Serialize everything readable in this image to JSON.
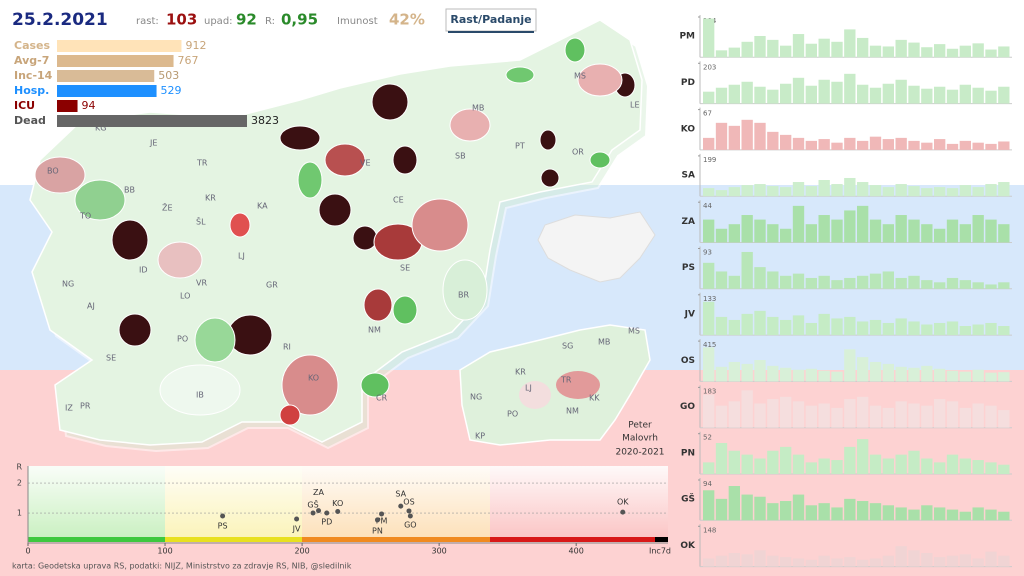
{
  "header": {
    "date": "25.2.2021",
    "rast_label": "rast:",
    "rast": "103",
    "upad_label": "upad:",
    "upad": "92",
    "r_label": "R:",
    "r": "0,95",
    "imunost_label": "Imunost",
    "imunost": "42%",
    "button": "Rast/Padanje"
  },
  "map": {
    "labels": [
      "KG",
      "JE",
      "BO",
      "BB",
      "TR",
      "KR",
      "ŽE",
      "TO",
      "ŠL",
      "KA",
      "ID",
      "LJ",
      "NG",
      "VR",
      "LO",
      "GR",
      "AJ",
      "PO",
      "RI",
      "NM",
      "SE",
      "KO",
      "IB",
      "IZ",
      "PR",
      "CR",
      "BR",
      "SE",
      "CE",
      "VE",
      "SB",
      "MS",
      "LE",
      "MB",
      "PT",
      "OR"
    ],
    "inset_labels": [
      "MS",
      "SG",
      "MB",
      "KR",
      "LJ",
      "TR",
      "NG",
      "KK",
      "PO",
      "NM",
      "KP"
    ],
    "author": [
      "Peter",
      "Malovrh",
      "2020-2021"
    ],
    "credits": "karta: Geodetska uprava RS,  podatki: NIJZ, Ministrstvo za zdravje RS, NIB, @sledilnik"
  },
  "chart_data": [
    {
      "type": "bar",
      "orientation": "horizontal",
      "log_scale": true,
      "xlim": [
        60,
        3823
      ],
      "categories": [
        "Cases",
        "Avg-7",
        "Inc-14",
        "Hosp.",
        "ICU",
        "Dead"
      ],
      "values": [
        912,
        767,
        503,
        529,
        94,
        3823
      ],
      "colors": [
        "#ffe3b8",
        "#dcb98e",
        "#d9bb97",
        "#1e90ff",
        "#8b0000",
        "#666666"
      ],
      "label_colors": [
        "#d4b48a",
        "#c8a57a",
        "#c8a57a",
        "#1e90ff",
        "#8b0000",
        "#555555"
      ],
      "value_colors": [
        "#c8a57a",
        "#c8a57a",
        "#b89a72",
        "#1e90ff",
        "#8b0000",
        "#222222"
      ]
    },
    {
      "type": "scatter",
      "x": [
        142,
        196,
        208,
        212,
        218,
        226,
        272,
        278,
        258,
        255,
        279,
        434
      ],
      "values": [
        0.9,
        0.8,
        1.0,
        1.08,
        1.0,
        1.05,
        1.23,
        1.07,
        0.97,
        0.77,
        0.9,
        1.03
      ],
      "labels": [
        "PS",
        "JV",
        "GŠ",
        "ZA",
        "PD",
        "KO",
        "SA",
        "OS",
        "PM",
        "PN",
        "GO",
        "OK"
      ],
      "xlim": [
        0,
        467
      ],
      "ylim": [
        0,
        2.57
      ],
      "xticks": [
        0,
        100,
        200,
        300,
        400
      ],
      "yticks": [
        1,
        2
      ],
      "xlabel": "Inc7d",
      "ylabel": "R",
      "color": "#555555",
      "grid": true
    },
    {
      "type": "bar",
      "title": "PM",
      "ylim": [
        0,
        104
      ],
      "yticks": [
        104
      ],
      "color": "#c8ebc8",
      "values": [
        100,
        18,
        25,
        40,
        55,
        45,
        30,
        60,
        35,
        48,
        40,
        72,
        50,
        30,
        28,
        45,
        38,
        26,
        34,
        22,
        30,
        36,
        20,
        28
      ]
    },
    {
      "type": "bar",
      "title": "PD",
      "ylim": [
        0,
        203
      ],
      "yticks": [
        203
      ],
      "color": "#c8ebc8",
      "values": [
        60,
        80,
        95,
        110,
        85,
        70,
        100,
        130,
        90,
        120,
        110,
        150,
        95,
        80,
        100,
        120,
        90,
        75,
        85,
        70,
        95,
        80,
        65,
        85
      ]
    },
    {
      "type": "bar",
      "title": "KO",
      "ylim": [
        0,
        67
      ],
      "yticks": [
        67
      ],
      "color": "#f0b8b8",
      "values": [
        20,
        45,
        40,
        50,
        45,
        30,
        25,
        20,
        15,
        18,
        12,
        20,
        15,
        22,
        18,
        20,
        15,
        12,
        18,
        10,
        15,
        12,
        10,
        14
      ]
    },
    {
      "type": "bar",
      "title": "SA",
      "ylim": [
        0,
        199
      ],
      "yticks": [
        199
      ],
      "color": "#cdeecd",
      "values": [
        40,
        30,
        45,
        55,
        60,
        50,
        45,
        70,
        50,
        80,
        60,
        90,
        70,
        55,
        45,
        60,
        50,
        40,
        45,
        40,
        55,
        45,
        60,
        70
      ]
    },
    {
      "type": "bar",
      "title": "ZA",
      "ylim": [
        0,
        44
      ],
      "yticks": [
        44
      ],
      "color": "#a9e0a9",
      "values": [
        25,
        15,
        20,
        30,
        25,
        20,
        15,
        40,
        20,
        30,
        25,
        35,
        40,
        25,
        20,
        30,
        25,
        20,
        15,
        25,
        20,
        30,
        25,
        20
      ]
    },
    {
      "type": "bar",
      "title": "PS",
      "ylim": [
        0,
        93
      ],
      "yticks": [
        93
      ],
      "color": "#b8e6b8",
      "values": [
        60,
        40,
        30,
        85,
        50,
        40,
        30,
        35,
        25,
        30,
        20,
        25,
        30,
        35,
        40,
        25,
        30,
        20,
        15,
        25,
        20,
        15,
        10,
        15
      ]
    },
    {
      "type": "bar",
      "title": "JV",
      "ylim": [
        0,
        133
      ],
      "yticks": [
        133
      ],
      "color": "#c5ecc5",
      "values": [
        110,
        60,
        50,
        70,
        80,
        60,
        50,
        65,
        40,
        70,
        55,
        60,
        45,
        50,
        40,
        55,
        45,
        35,
        40,
        45,
        30,
        35,
        40,
        30
      ]
    },
    {
      "type": "bar",
      "title": "OS",
      "ylim": [
        0,
        415
      ],
      "yticks": [
        415
      ],
      "color": "#d8f0d8",
      "values": [
        350,
        150,
        200,
        180,
        220,
        160,
        140,
        120,
        130,
        110,
        100,
        330,
        250,
        200,
        180,
        150,
        140,
        160,
        130,
        110,
        100,
        120,
        90,
        95
      ]
    },
    {
      "type": "bar",
      "title": "GO",
      "ylim": [
        0,
        183
      ],
      "yticks": [
        183
      ],
      "color": "#f5dede",
      "values": [
        150,
        100,
        120,
        170,
        110,
        130,
        140,
        120,
        100,
        110,
        90,
        130,
        140,
        100,
        90,
        120,
        110,
        100,
        130,
        120,
        90,
        110,
        100,
        80
      ]
    },
    {
      "type": "bar",
      "title": "PN",
      "ylim": [
        0,
        52
      ],
      "yticks": [
        52
      ],
      "color": "#c5ecc5",
      "values": [
        15,
        40,
        30,
        25,
        20,
        30,
        35,
        25,
        15,
        20,
        18,
        35,
        45,
        25,
        20,
        25,
        30,
        20,
        15,
        25,
        20,
        18,
        15,
        12
      ]
    },
    {
      "type": "bar",
      "title": "GŠ",
      "ylim": [
        0,
        94
      ],
      "yticks": [
        94
      ],
      "color": "#a9e0a9",
      "values": [
        70,
        50,
        80,
        60,
        55,
        40,
        45,
        60,
        35,
        40,
        30,
        50,
        45,
        40,
        35,
        30,
        25,
        35,
        30,
        25,
        20,
        30,
        25,
        20
      ]
    },
    {
      "type": "bar",
      "title": "OK",
      "ylim": [
        0,
        148
      ],
      "yticks": [
        148
      ],
      "color": "#f0d4d4",
      "values": [
        30,
        40,
        50,
        45,
        60,
        40,
        35,
        30,
        25,
        40,
        30,
        35,
        25,
        30,
        40,
        75,
        60,
        50,
        35,
        40,
        45,
        30,
        55,
        40
      ]
    }
  ]
}
